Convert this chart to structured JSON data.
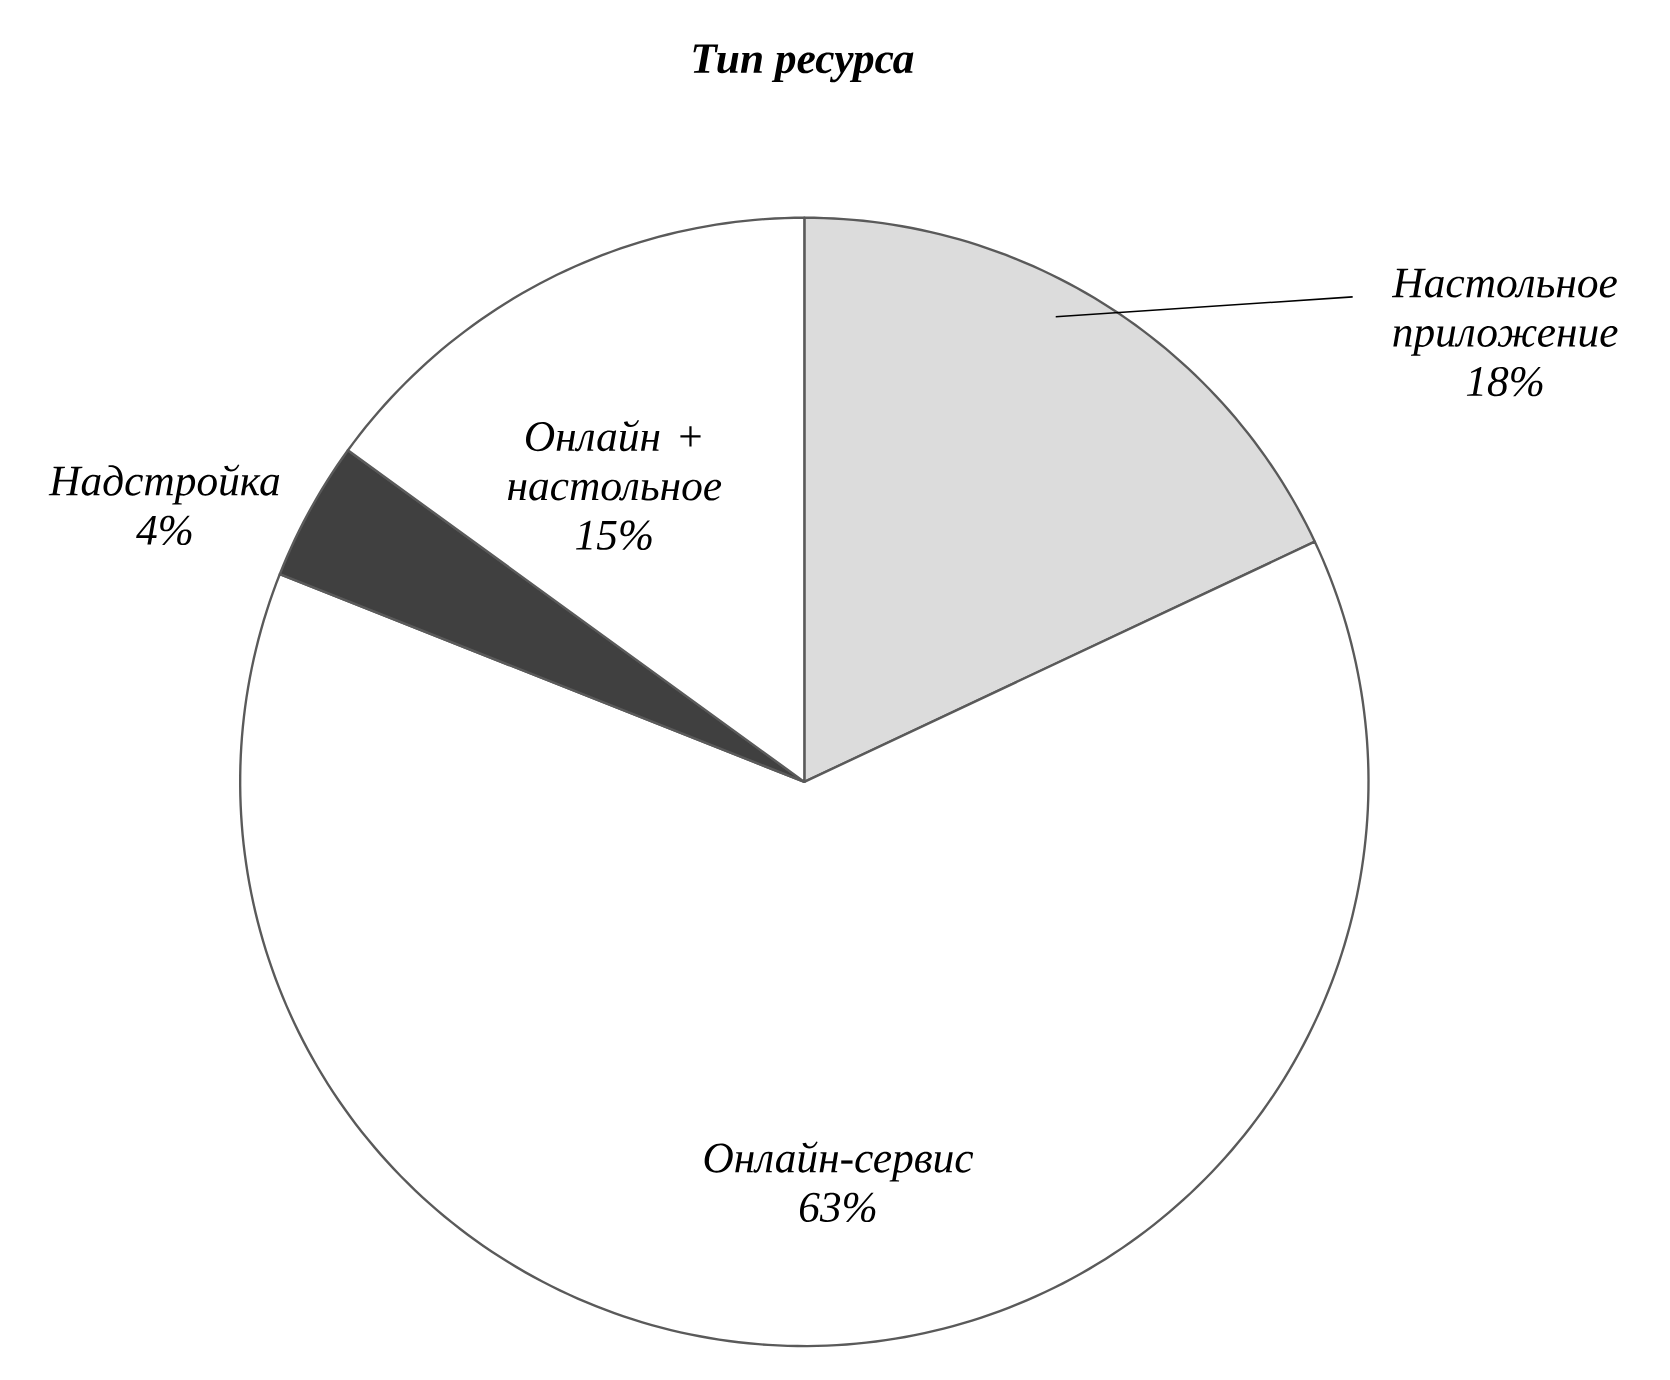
{
  "chart_data": {
    "type": "pie",
    "title": "**Тип ресурса**",
    "categories": [
      "Настольное приложение",
      "Онлайн-сервис",
      "Надстройка",
      "Онлайн + настольное"
    ],
    "values": [
      18,
      63,
      4,
      15
    ],
    "colors": [
      "#dcdcdc",
      "#ffffff",
      "#404040",
      "#ffffff"
    ],
    "value_labels": [
      "18%",
      "63%",
      "4%",
      "15%"
    ]
  }
}
